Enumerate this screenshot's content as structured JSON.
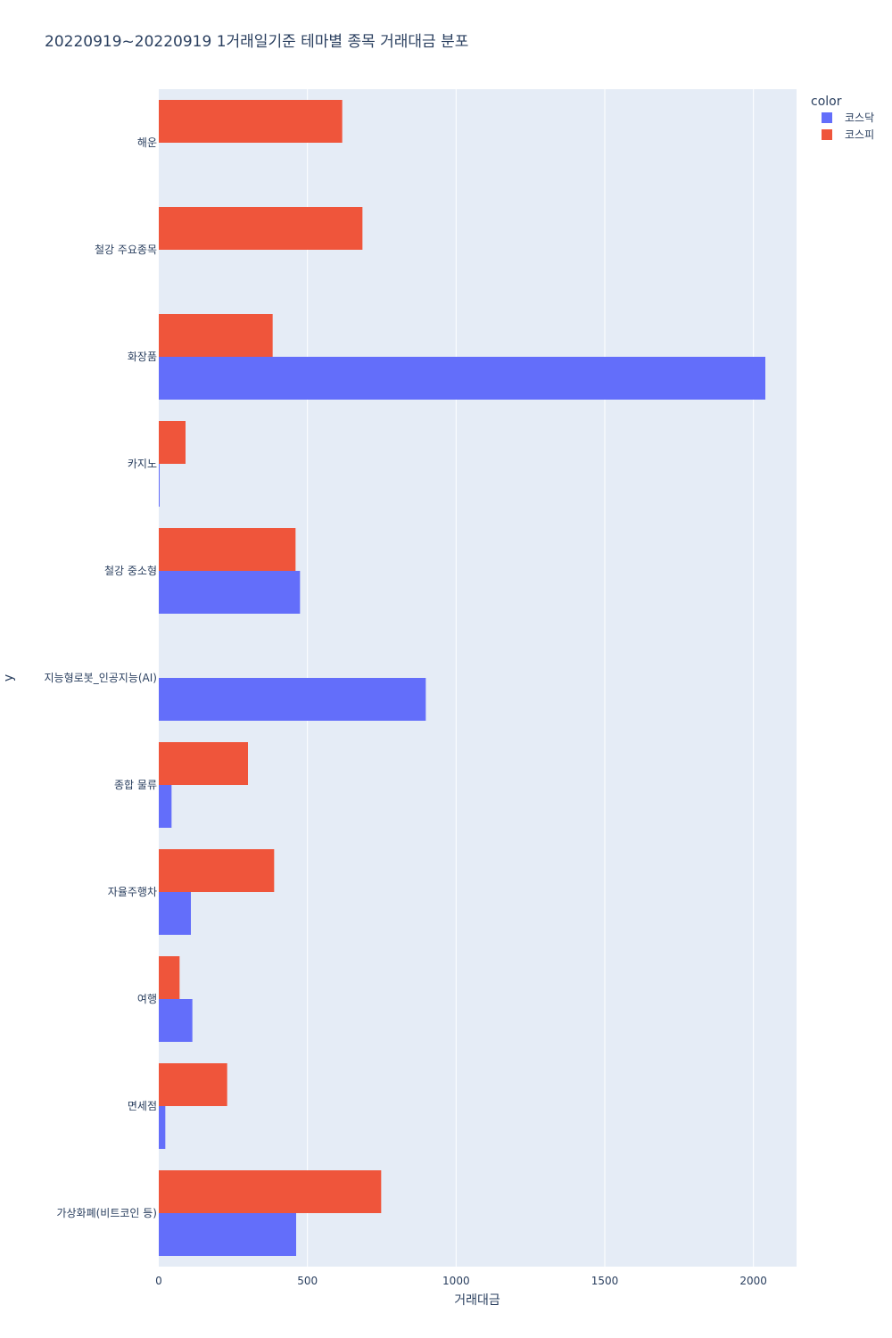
{
  "chart_data": {
    "type": "bar",
    "orientation": "horizontal",
    "barmode": "group",
    "title": "20220919~20220919 1거래일기준 테마별 종목 거래대금 분포",
    "xlabel": "거래대금",
    "ylabel": "y",
    "xlim": [
      0,
      2145
    ],
    "xticks": [
      0,
      500,
      1000,
      1500,
      2000
    ],
    "grid": true,
    "legend": {
      "title": "color",
      "placement": "top-right"
    },
    "categories": [
      "해운",
      "철강 주요종목",
      "화장품",
      "카지노",
      "철강 중소형",
      "지능형로봇_인공지능(AI)",
      "종합 물류",
      "자율주행차",
      "여행",
      "면세점",
      "가상화폐(비트코인 등)"
    ],
    "series": [
      {
        "name": "코스닥",
        "color": "#636efa",
        "values": [
          0,
          0,
          2040,
          3,
          475,
          898,
          43,
          108,
          113,
          22,
          462
        ]
      },
      {
        "name": "코스피",
        "color": "#ef553b",
        "values": [
          617,
          685,
          383,
          90,
          460,
          0,
          300,
          388,
          70,
          230,
          748
        ]
      }
    ]
  }
}
